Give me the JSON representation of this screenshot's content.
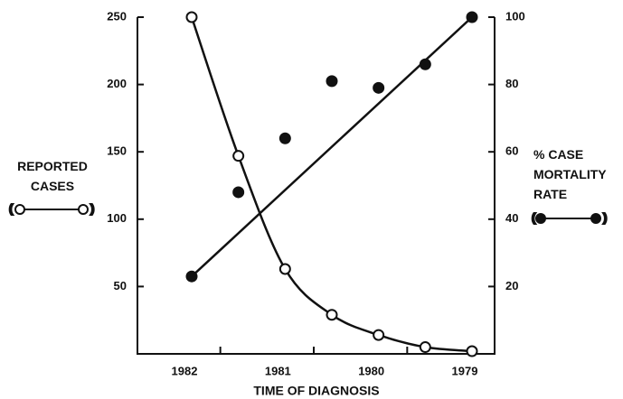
{
  "chart_data": {
    "type": "line",
    "xlabel": "TIME OF DIAGNOSIS",
    "categories": [
      "1982",
      null,
      "1981",
      null,
      "1980",
      null,
      "1979"
    ],
    "ylim": [
      0,
      250
    ],
    "yticks": [
      50,
      100,
      150,
      200,
      250
    ],
    "y2lim": [
      0,
      100
    ],
    "y2ticks": [
      20,
      40,
      60,
      80,
      100
    ],
    "series": [
      {
        "name": "REPORTED CASES",
        "color": "#111111",
        "marker": "open",
        "values": [
          250,
          147,
          63,
          29,
          14,
          5,
          2
        ]
      },
      {
        "name": "% CASE MORTALITY RATE",
        "color": "#111111",
        "marker": "filled",
        "axis": "y2",
        "values": [
          23,
          48,
          64,
          81,
          79,
          86,
          100
        ]
      }
    ]
  }
}
